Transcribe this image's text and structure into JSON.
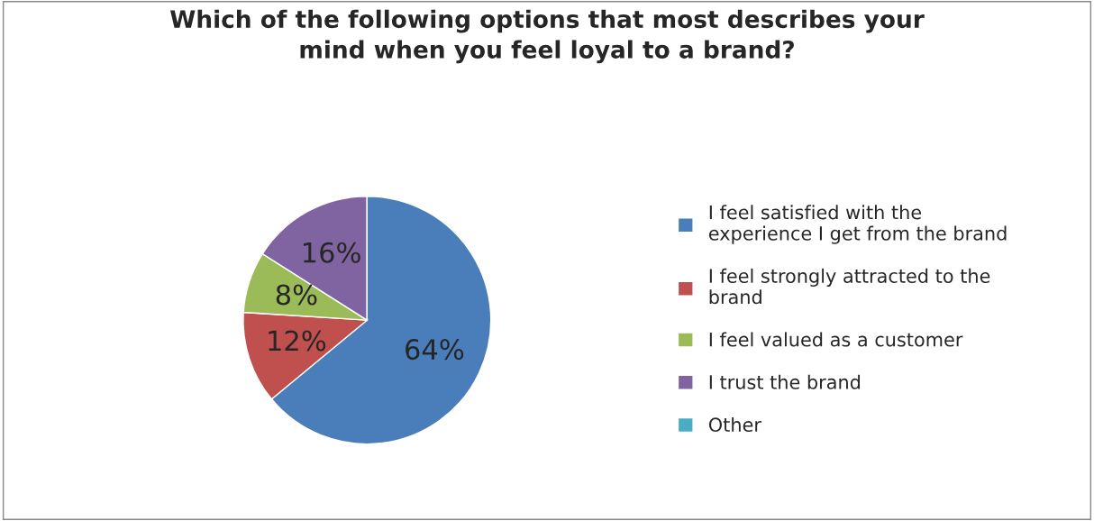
{
  "chart_data": {
    "type": "pie",
    "title": "Which of the following options that most describes your mind when you feel loyal to a brand?",
    "categories": [
      "I feel satisfied with the experience I get from the brand",
      "I feel strongly attracted to the brand",
      "I feel valued as a customer",
      "I trust the brand",
      "Other"
    ],
    "values": [
      64,
      12,
      8,
      16,
      0
    ],
    "colors": [
      "#4a7ebb",
      "#c0504d",
      "#9bbb59",
      "#8064a2",
      "#4bacc6"
    ],
    "value_labels": [
      "64%",
      "12%",
      "8%",
      "16%",
      null
    ],
    "legend": "right"
  }
}
